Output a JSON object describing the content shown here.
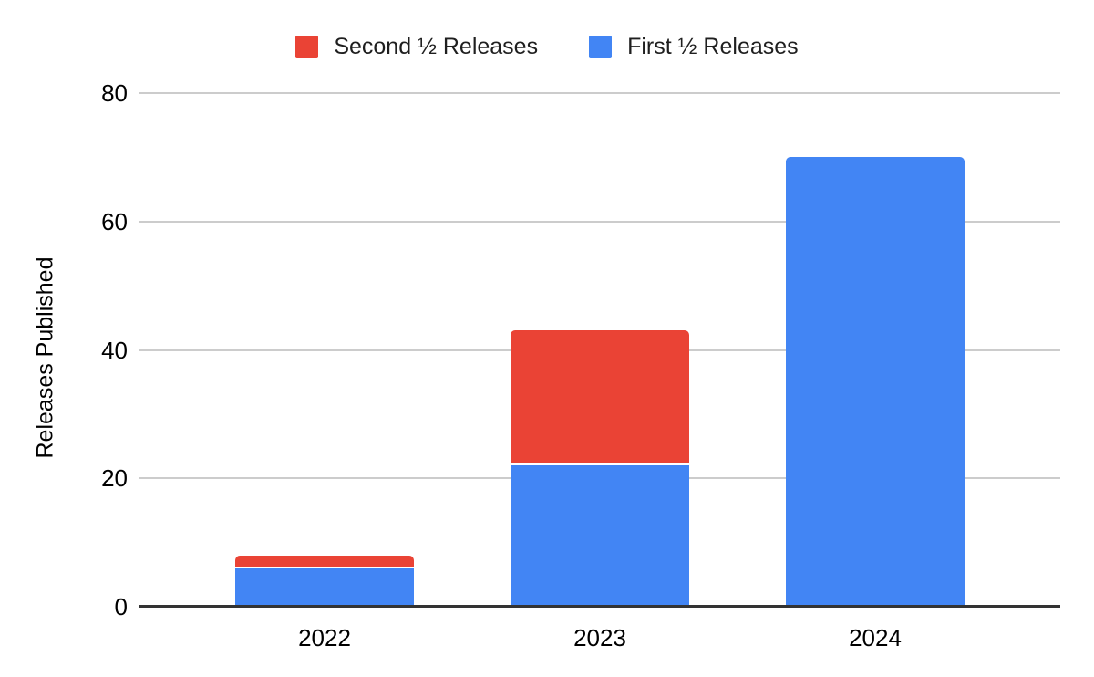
{
  "chart_data": {
    "type": "bar",
    "stacked": true,
    "categories": [
      "2022",
      "2023",
      "2024"
    ],
    "series": [
      {
        "name": "Second ½ Releases",
        "color": "#ea4335",
        "values": [
          2,
          21,
          0
        ]
      },
      {
        "name": "First ½ Releases",
        "color": "#4285f4",
        "values": [
          6,
          22,
          70
        ]
      }
    ],
    "totals": [
      8,
      43,
      70
    ],
    "title": "",
    "xlabel": "",
    "ylabel": "Releases Published",
    "ylim": [
      0,
      80
    ],
    "yticks": [
      0,
      20,
      40,
      60,
      80
    ],
    "grid": true,
    "legend_position": "top"
  },
  "colors": {
    "second_half": "#ea4335",
    "first_half": "#4285f4",
    "gridline": "#cccccc",
    "axis_line": "#333333",
    "text": "#000000"
  },
  "axis": {
    "y_title": "Releases Published",
    "y_tick_labels": [
      "0",
      "20",
      "40",
      "60",
      "80"
    ],
    "x_tick_labels": [
      "2022",
      "2023",
      "2024"
    ]
  },
  "legend": {
    "items": [
      {
        "label": "Second ½ Releases"
      },
      {
        "label": "First ½ Releases"
      }
    ]
  }
}
